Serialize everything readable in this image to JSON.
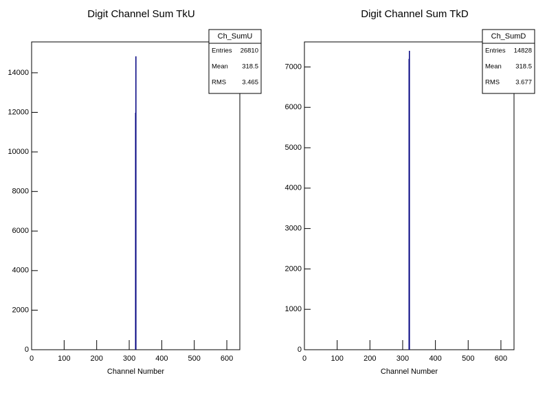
{
  "chart_data": [
    {
      "type": "histogram",
      "title": "Digit Channel Sum TkU",
      "x_label": "Channel Number",
      "bins": [
        318,
        319,
        320
      ],
      "counts": [
        11980,
        14830
      ],
      "color": "#000080",
      "xlim": [
        0,
        640
      ],
      "xticks": [
        0,
        100,
        200,
        300,
        400,
        500,
        600
      ],
      "ylim": [
        0,
        15560
      ],
      "yticks": [
        0,
        2000,
        4000,
        6000,
        8000,
        10000,
        12000,
        14000
      ],
      "stats": {
        "title": "Ch_SumU",
        "rows": [
          [
            "Entries",
            26810
          ],
          [
            "Mean",
            318.5
          ],
          [
            "RMS",
            3.465
          ]
        ]
      }
    },
    {
      "type": "histogram",
      "title": "Digit Channel Sum TkD",
      "x_label": "Channel Number",
      "bins": [
        318,
        319,
        320
      ],
      "counts": [
        7200,
        7400
      ],
      "color": "#000080",
      "xlim": [
        0,
        640
      ],
      "xticks": [
        0,
        100,
        200,
        300,
        400,
        500,
        600
      ],
      "ylim": [
        0,
        7620
      ],
      "yticks": [
        0,
        1000,
        2000,
        3000,
        4000,
        5000,
        6000,
        7000
      ],
      "stats": {
        "title": "Ch_SumD",
        "rows": [
          [
            "Entries",
            14828
          ],
          [
            "Mean",
            318.5
          ],
          [
            "RMS",
            3.677
          ]
        ]
      }
    }
  ]
}
